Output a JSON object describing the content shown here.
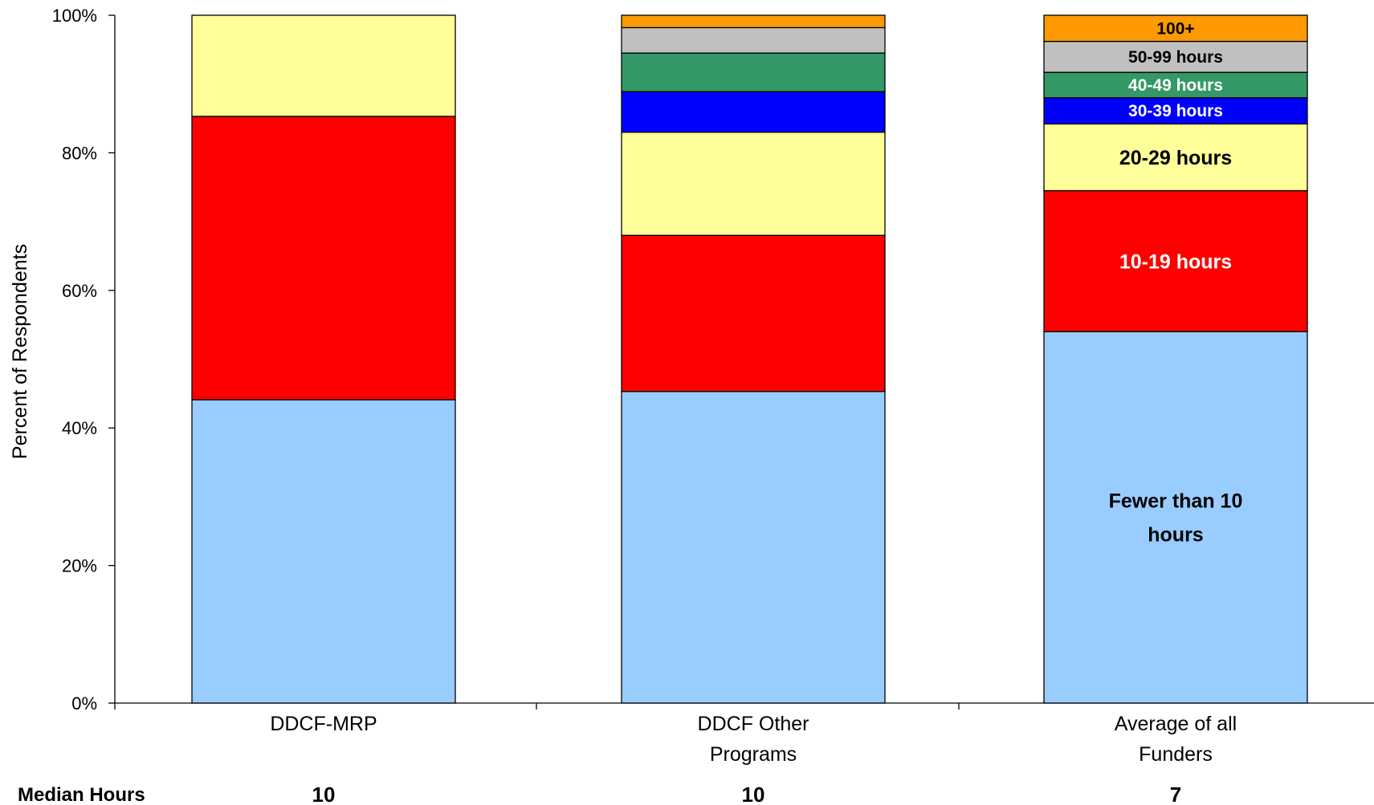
{
  "chart_data": {
    "type": "bar",
    "stacked": true,
    "ylabel": "Percent of Respondents",
    "ylim": [
      0,
      100
    ],
    "yticks": [
      "0%",
      "20%",
      "40%",
      "60%",
      "80%",
      "100%"
    ],
    "categories": [
      [
        "DDCF-MRP"
      ],
      [
        "DDCF Other",
        "Programs"
      ],
      [
        "Average of all",
        "Funders"
      ]
    ],
    "series": [
      {
        "name": "Fewer than 10 hours",
        "label_lines": [
          "Fewer than 10",
          "hours"
        ],
        "color": "#99ccff",
        "text_color": "#000000",
        "values": [
          44.1,
          45.3,
          54.0
        ]
      },
      {
        "name": "10-19 hours",
        "label_lines": [
          "10-19 hours"
        ],
        "color": "#ff0000",
        "text_color": "#ffffff",
        "values": [
          41.2,
          22.7,
          20.5
        ]
      },
      {
        "name": "20-29 hours",
        "label_lines": [
          "20-29 hours"
        ],
        "color": "#ffff99",
        "text_color": "#000000",
        "values": [
          14.7,
          15.0,
          9.7
        ]
      },
      {
        "name": "30-39 hours",
        "label_lines": [
          "30-39 hours"
        ],
        "color": "#0000ff",
        "text_color": "#ffffff",
        "values": [
          0,
          5.9,
          3.8
        ]
      },
      {
        "name": "40-49 hours",
        "label_lines": [
          "40-49 hours"
        ],
        "color": "#339966",
        "text_color": "#ffffff",
        "values": [
          0,
          5.6,
          3.7
        ]
      },
      {
        "name": "50-99 hours",
        "label_lines": [
          "50-99 hours"
        ],
        "color": "#c0c0c0",
        "text_color": "#000000",
        "values": [
          0,
          3.7,
          4.5
        ]
      },
      {
        "name": "100+",
        "label_lines": [
          "100+"
        ],
        "color": "#ff9900",
        "text_color": "#000000",
        "values": [
          0,
          1.8,
          3.8
        ]
      }
    ],
    "label_column": 2,
    "median": {
      "title": "Median Hours",
      "values": [
        "10",
        "10",
        "7"
      ]
    },
    "grid": false,
    "legend": "none"
  }
}
